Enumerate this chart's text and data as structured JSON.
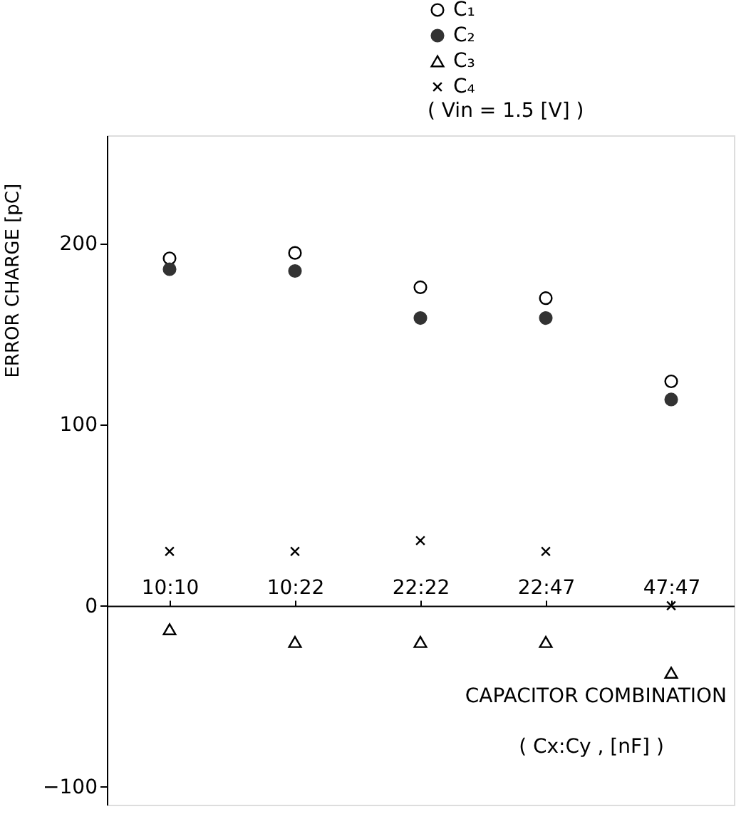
{
  "chart_data": {
    "type": "scatter",
    "ylabel": "ERROR CHARGE [pC]",
    "xlabel": "CAPACITOR COMBINATION",
    "categories": [
      "10:10",
      "10:22",
      "22:22",
      "22:47",
      "47:47"
    ],
    "series": [
      {
        "name": "C₁",
        "color": "#000000",
        "marker": "circle",
        "values": [
          192,
          195,
          176,
          170,
          124
        ]
      },
      {
        "name": "C₂",
        "color": "#333333",
        "marker": "circle",
        "values": [
          186,
          185,
          159,
          159,
          114
        ]
      },
      {
        "name": "C₃",
        "color": "#000000",
        "marker": "triangle",
        "values": [
          -13,
          -20,
          -20,
          -20,
          -37
        ]
      },
      {
        "name": "C₄",
        "color": "#000000",
        "marker": "cross",
        "values": [
          30,
          30,
          36,
          30,
          0
        ]
      }
    ],
    "ylim": [
      -110,
      260
    ],
    "yticks": [
      -100,
      0,
      100,
      200
    ],
    "grid": false,
    "legend": "top right",
    "annotations": [
      "( Vin = 1.5 [V] )",
      "( Cx:Cy , [nF] )"
    ]
  }
}
